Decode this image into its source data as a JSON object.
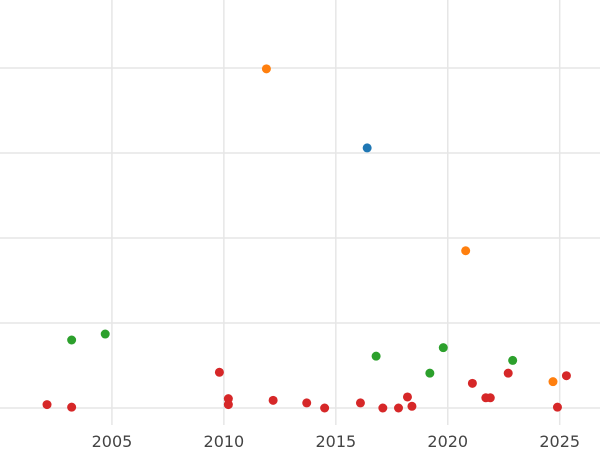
{
  "chart_data": {
    "type": "scatter",
    "title": "",
    "xlabel": "",
    "ylabel": "",
    "xlim": [
      2000.0,
      2026.8
    ],
    "ylim": [
      -0.2,
      4.8
    ],
    "grid": true,
    "xticks": [
      2005,
      2010,
      2015,
      2020,
      2025
    ],
    "xtick_labels": [
      "2005",
      "2010",
      "2015",
      "2020",
      "2025"
    ],
    "yticks": [
      0.0,
      1.0,
      2.0,
      3.0,
      4.0,
      5.0
    ],
    "series": [
      {
        "color": "#d62728",
        "points": [
          {
            "x": 2002.1,
            "y": 0.04
          },
          {
            "x": 2003.2,
            "y": 0.01
          },
          {
            "x": 2009.8,
            "y": 0.42
          },
          {
            "x": 2010.2,
            "y": 0.11
          },
          {
            "x": 2010.2,
            "y": 0.04
          },
          {
            "x": 2012.2,
            "y": 0.09
          },
          {
            "x": 2013.7,
            "y": 0.06
          },
          {
            "x": 2014.5,
            "y": 0.0
          },
          {
            "x": 2016.1,
            "y": 0.06
          },
          {
            "x": 2017.1,
            "y": 0.0
          },
          {
            "x": 2017.8,
            "y": 0.0
          },
          {
            "x": 2018.2,
            "y": 0.13
          },
          {
            "x": 2018.4,
            "y": 0.02
          },
          {
            "x": 2021.1,
            "y": 0.29
          },
          {
            "x": 2021.7,
            "y": 0.12
          },
          {
            "x": 2021.9,
            "y": 0.12
          },
          {
            "x": 2022.7,
            "y": 0.41
          },
          {
            "x": 2024.9,
            "y": 0.01
          },
          {
            "x": 2025.3,
            "y": 0.38
          }
        ]
      },
      {
        "color": "#2ca02c",
        "points": [
          {
            "x": 2003.2,
            "y": 0.8
          },
          {
            "x": 2004.7,
            "y": 0.87
          },
          {
            "x": 2016.8,
            "y": 0.61
          },
          {
            "x": 2019.2,
            "y": 0.41
          },
          {
            "x": 2019.8,
            "y": 0.71
          },
          {
            "x": 2022.9,
            "y": 0.56
          }
        ]
      },
      {
        "color": "#ff7f0e",
        "points": [
          {
            "x": 2011.9,
            "y": 3.99
          },
          {
            "x": 2020.8,
            "y": 1.85
          },
          {
            "x": 2024.7,
            "y": 0.31
          }
        ]
      },
      {
        "color": "#1f77b4",
        "points": [
          {
            "x": 2016.4,
            "y": 3.06
          }
        ]
      }
    ]
  }
}
